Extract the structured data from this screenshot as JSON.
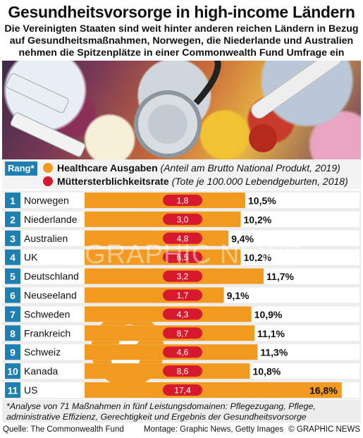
{
  "title": "Gesundheitsvorsorge in high-income Ländern",
  "subtitle_lines": [
    "Die Vereinigten Staaten sind weit hinter anderen reichen Ländern in Bezug",
    "auf Gesundheitsmaßnahmen, Norwegen, die Niederlande und Australien",
    "nehmen die Spitzenplätze in einer Commonwealth Fund Umfrage ein"
  ],
  "legend": {
    "rang_label": "Rang*",
    "healthcare": {
      "label": "Healthcare Ausgaben",
      "note": "(Anteil am Brutto National Produkt, 2019)",
      "color": "#f29a1f"
    },
    "maternal": {
      "label": "Müttersterblichkeitsrate",
      "note": "(Tote je 100.000 Lebendgeburten, 2018)",
      "color": "#d7192d"
    }
  },
  "colors": {
    "rank_box": "#1e7fb0",
    "bar": "#f29a1f",
    "pill": "#d7192d",
    "row_bg": "#ffffff"
  },
  "watermark": "GRAPHIC NEWS",
  "chart_data": {
    "type": "bar",
    "orientation": "horizontal",
    "categories": [
      "Norwegen",
      "Niederlande",
      "Australien",
      "UK",
      "Deutschland",
      "Neuseeland",
      "Schweden",
      "Frankreich",
      "Schweiz",
      "Kanada",
      "US"
    ],
    "ranks": [
      "1",
      "2",
      "3",
      "4",
      "5",
      "6",
      "7",
      "8",
      "9",
      "10",
      "11"
    ],
    "series": [
      {
        "name": "Healthcare Ausgaben",
        "values": [
          10.5,
          10.2,
          9.4,
          10.2,
          11.7,
          9.1,
          10.9,
          11.1,
          11.3,
          10.8,
          16.8
        ],
        "labels": [
          "10,5%",
          "10,2%",
          "9,4%",
          "10,2%",
          "11,7%",
          "9,1%",
          "10,9%",
          "11,1%",
          "11,3%",
          "10,8%",
          "16,8%"
        ]
      },
      {
        "name": "Müttersterblichkeitsrate",
        "values": [
          1.8,
          3.0,
          4.8,
          6.5,
          3.2,
          1.7,
          4.3,
          8.7,
          4.6,
          8.6,
          17.4
        ],
        "labels": [
          "1,8",
          "3,0",
          "4,8",
          "6,5",
          "3,2",
          "1,7",
          "4,3",
          "8,7",
          "4,6",
          "8,6",
          "17,4"
        ]
      }
    ],
    "xlim": [
      0,
      17.5
    ]
  },
  "footnote": "*Analyse von 71 Maßnahmen in fünf Leistungsdomainen: Pflegezugang, Pflege, administrative Effizienz, Gerechtigkeit und Ergebnis der Gesundheitsvorsorge",
  "sources": {
    "quelle": "Quelle: The Commonwealth Fund",
    "montage": "Montage: Graphic News, Getty Images",
    "copyright": "© GRAPHIC NEWS"
  }
}
